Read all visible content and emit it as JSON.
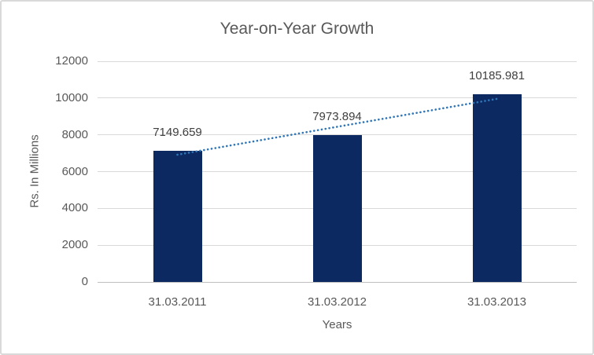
{
  "chart_data": {
    "type": "bar",
    "title": "Year-on-Year Growth",
    "xlabel": "Years",
    "ylabel": "Rs. In Millions",
    "categories": [
      "31.03.2011",
      "31.03.2012",
      "31.03.2013"
    ],
    "values": [
      7149.659,
      7973.894,
      10185.981
    ],
    "data_labels": [
      "7149.659",
      "7973.894",
      "10185.981"
    ],
    "ylim": [
      0,
      12000
    ],
    "yticks": [
      0,
      2000,
      4000,
      6000,
      8000,
      10000,
      12000
    ],
    "grid": true,
    "legend": "none",
    "bar_color": "#0d2961",
    "trendline": {
      "type": "linear",
      "style": "dotted",
      "color": "#2f76b8"
    },
    "colors": {
      "title_text": "#595959",
      "axis_text": "#595959",
      "data_label_text": "#404040",
      "gridline": "#d9d9d9",
      "axis_line": "#bfbfbf",
      "frame_border": "#d9d9d9",
      "background": "#ffffff"
    }
  }
}
